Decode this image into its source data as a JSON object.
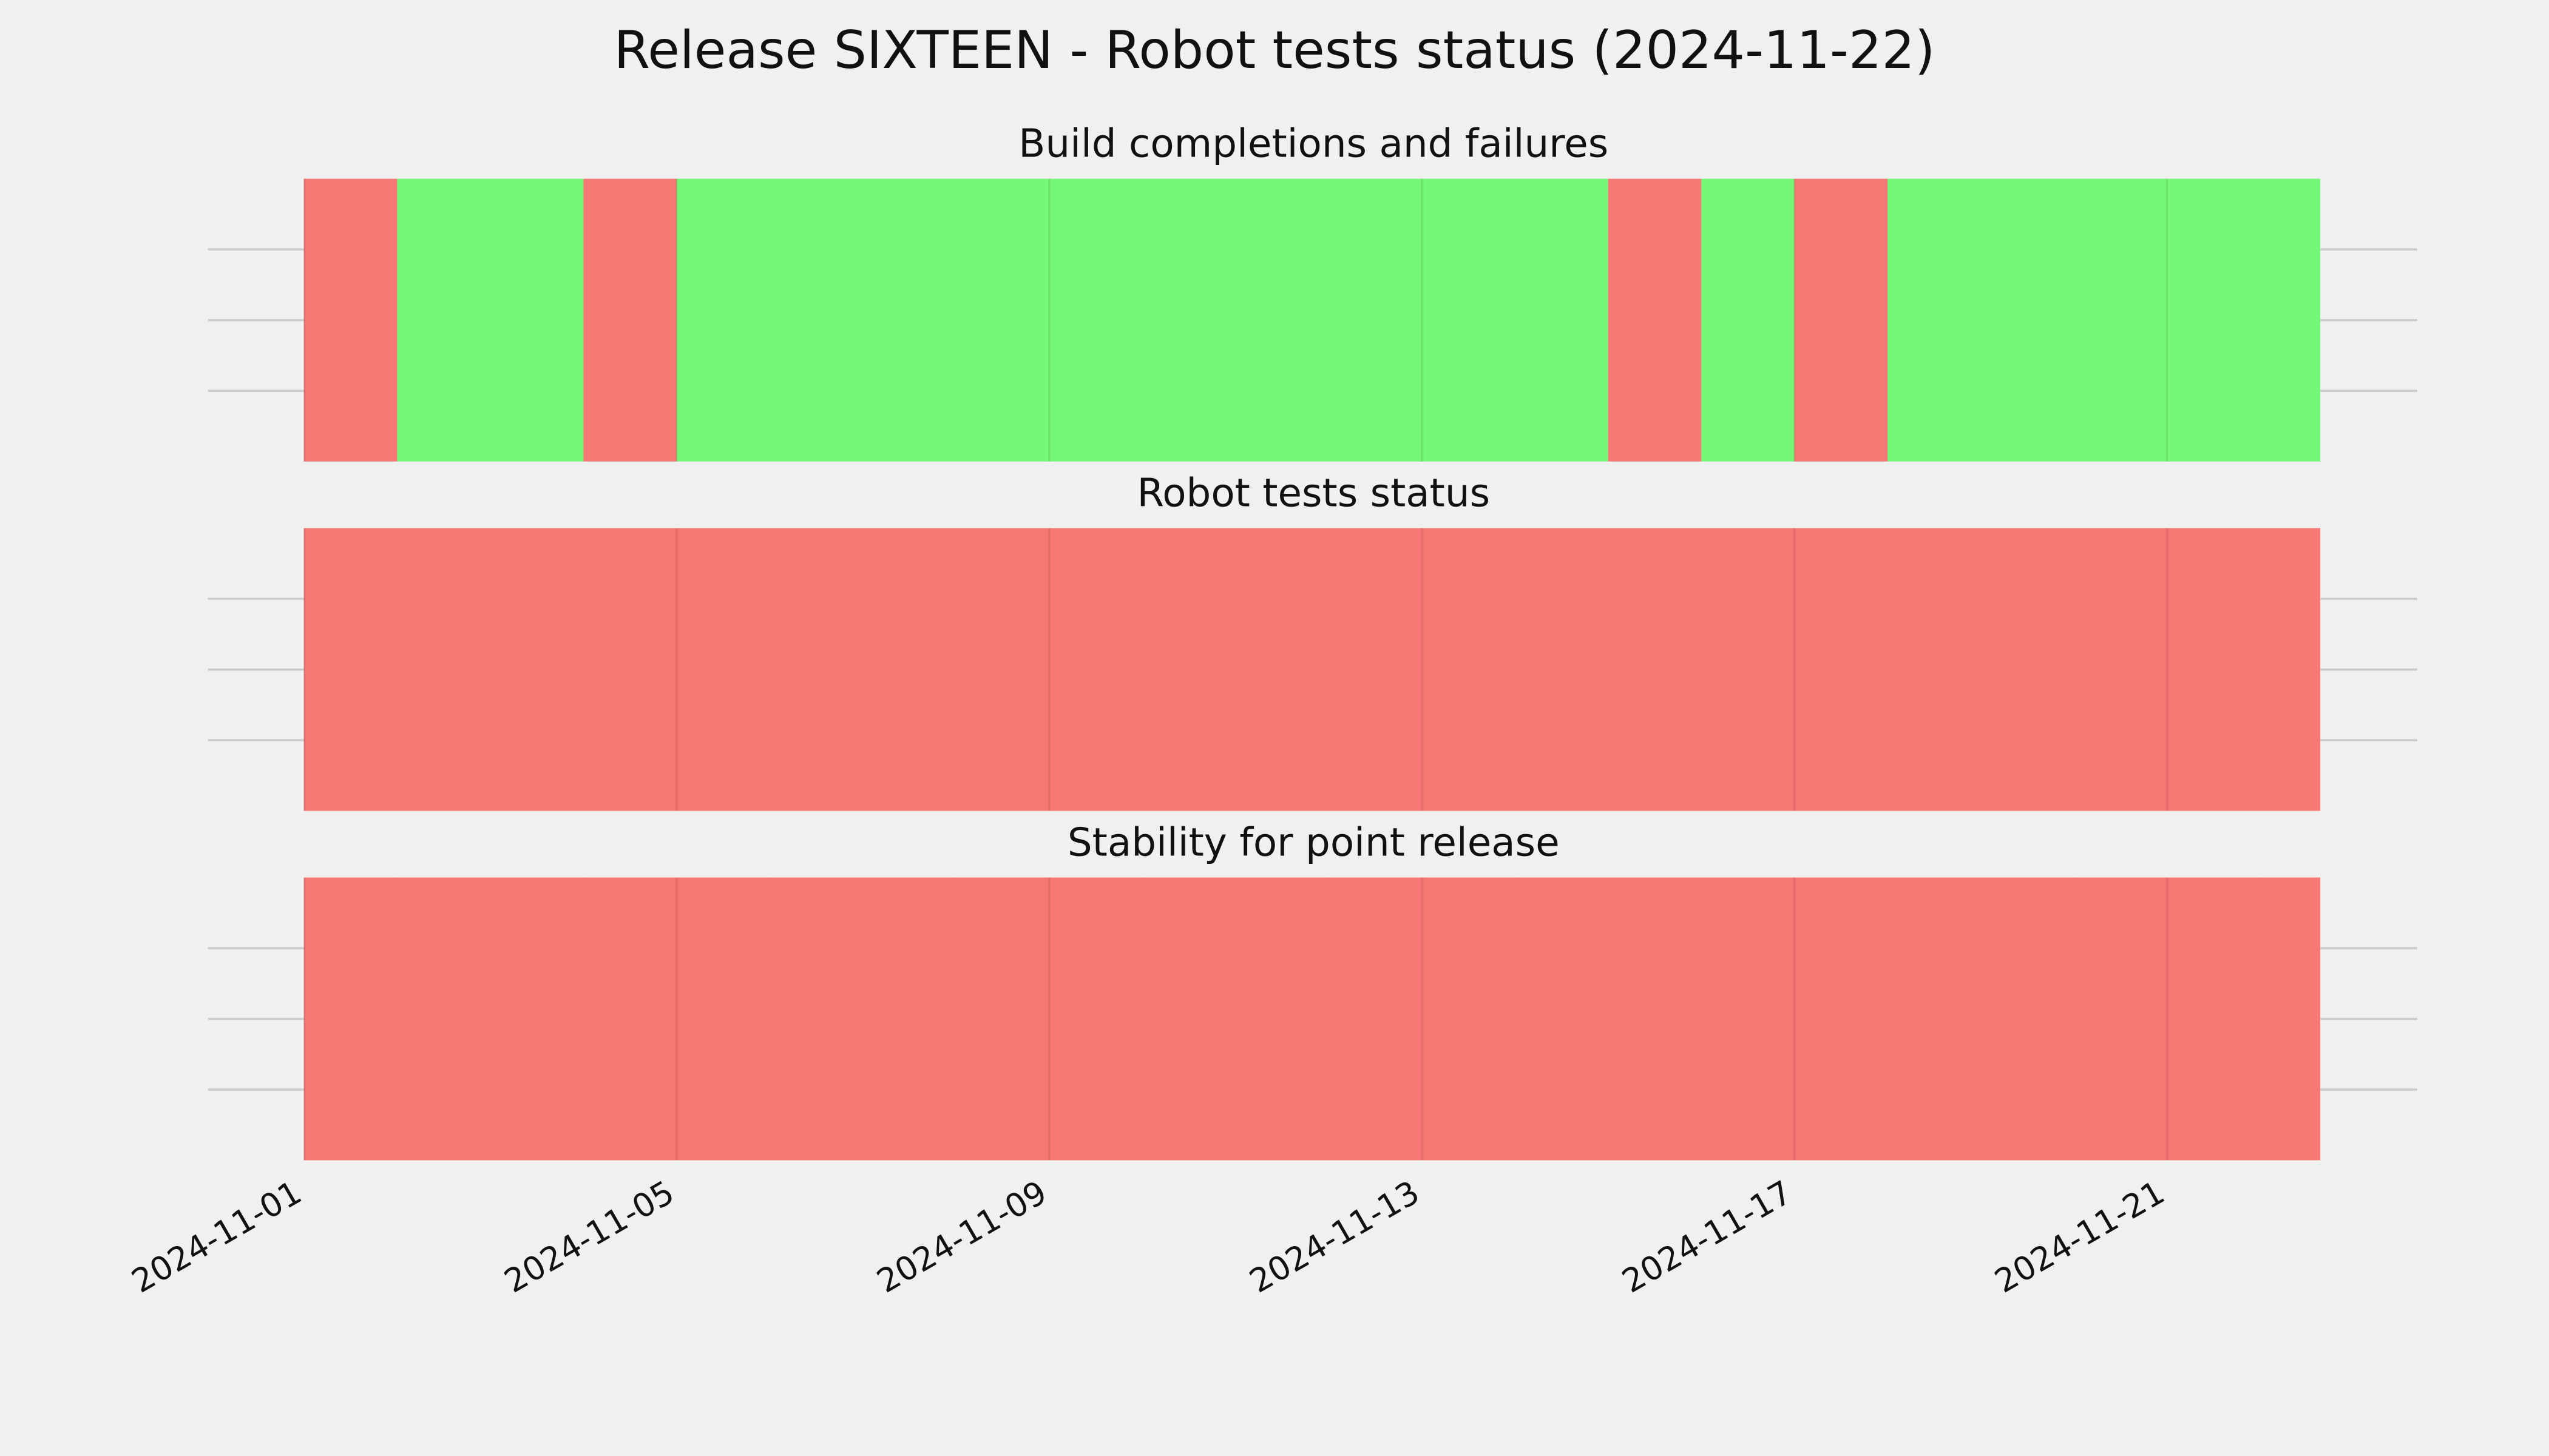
{
  "chart_data": {
    "type": "timeline",
    "title": "Release SIXTEEN - Robot tests status (2024-11-22)",
    "status_colors": [
      "#f77774",
      "#75f777"
    ],
    "xlim": [
      "2024-11-01T00:00",
      "2024-11-22T15:22"
    ],
    "xticks": [
      "2024-11-01",
      "2024-11-05",
      "2024-11-09",
      "2024-11-13",
      "2024-11-17",
      "2024-11-21"
    ],
    "ylim": [
      0,
      1
    ],
    "yticks": [
      0.25,
      0.5,
      0.75
    ],
    "grid": true,
    "panels": [
      {
        "title": "Build completions and failures",
        "x": [
          "2024-11-01",
          "2024-11-02",
          "2024-11-03",
          "2024-11-04",
          "2024-11-05",
          "2024-11-06",
          "2024-11-07",
          "2024-11-08",
          "2024-11-09",
          "2024-11-10",
          "2024-11-11",
          "2024-11-12",
          "2024-11-13",
          "2024-11-14",
          "2024-11-15",
          "2024-11-16",
          "2024-11-17",
          "2024-11-18",
          "2024-11-19",
          "2024-11-20",
          "2024-11-21",
          "2024-11-22"
        ],
        "values": [
          0,
          1,
          1,
          0,
          1,
          1,
          1,
          1,
          1,
          1,
          1,
          1,
          1,
          1,
          0,
          1,
          0,
          1,
          1,
          1,
          1,
          1
        ]
      },
      {
        "title": "Robot tests status",
        "x": [
          "2024-11-01",
          "2024-11-02",
          "2024-11-03",
          "2024-11-04",
          "2024-11-05",
          "2024-11-06",
          "2024-11-07",
          "2024-11-08",
          "2024-11-09",
          "2024-11-10",
          "2024-11-11",
          "2024-11-12",
          "2024-11-13",
          "2024-11-14",
          "2024-11-15",
          "2024-11-16",
          "2024-11-17",
          "2024-11-18",
          "2024-11-19",
          "2024-11-20",
          "2024-11-21",
          "2024-11-22"
        ],
        "values": [
          0,
          0,
          0,
          0,
          0,
          0,
          0,
          0,
          0,
          0,
          0,
          0,
          0,
          0,
          0,
          0,
          0,
          0,
          0,
          0,
          0,
          0
        ]
      },
      {
        "title": "Stability for point release",
        "x": [
          "2024-11-01",
          "2024-11-02",
          "2024-11-03",
          "2024-11-04",
          "2024-11-05",
          "2024-11-06",
          "2024-11-07",
          "2024-11-08",
          "2024-11-09",
          "2024-11-10",
          "2024-11-11",
          "2024-11-12",
          "2024-11-13",
          "2024-11-14",
          "2024-11-15",
          "2024-11-16",
          "2024-11-17",
          "2024-11-18",
          "2024-11-19",
          "2024-11-20",
          "2024-11-21",
          "2024-11-22"
        ],
        "values": [
          0,
          0,
          0,
          0,
          0,
          0,
          0,
          0,
          0,
          0,
          0,
          0,
          0,
          0,
          0,
          0,
          0,
          0,
          0,
          0,
          0,
          0
        ]
      }
    ]
  }
}
